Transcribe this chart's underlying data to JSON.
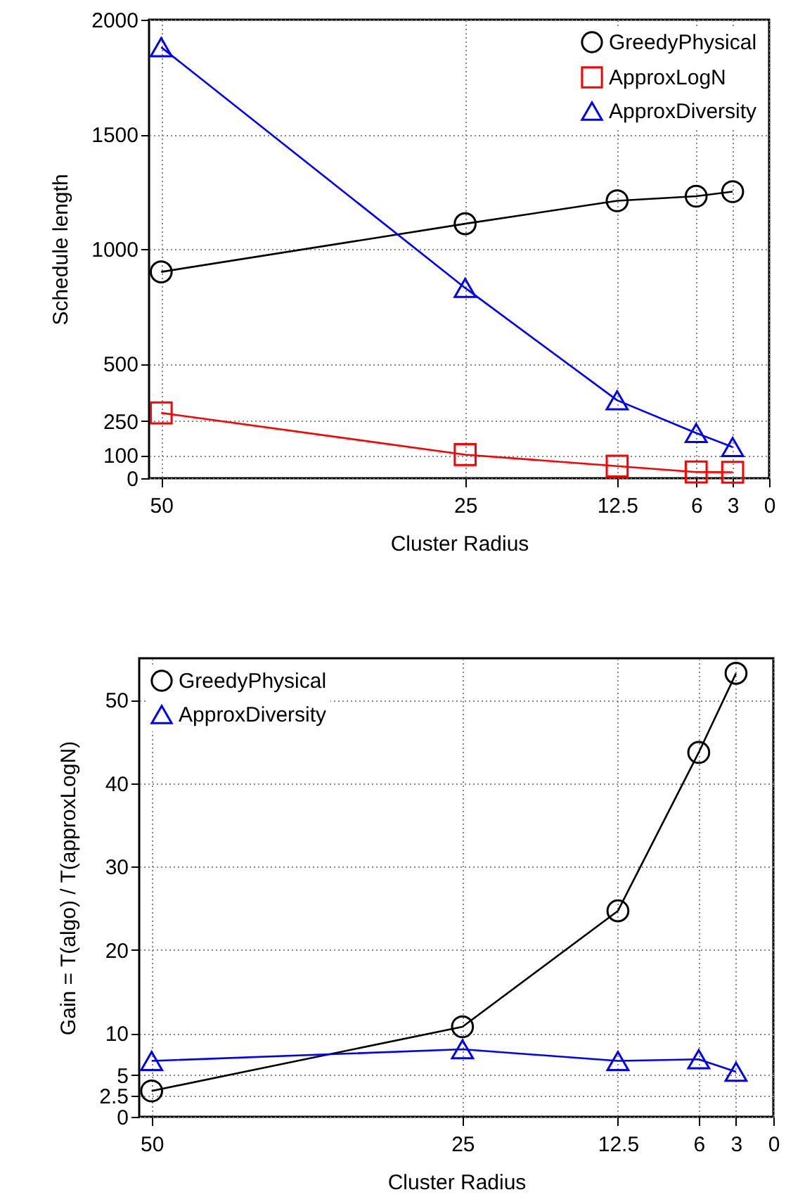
{
  "chart_data": [
    {
      "type": "line",
      "xlabel": "Cluster Radius",
      "ylabel": "Schedule length",
      "x": [
        50,
        25,
        12.5,
        6,
        3
      ],
      "xlim": [
        51,
        0
      ],
      "xticks": [
        50,
        25,
        12.5,
        6,
        3,
        0
      ],
      "ylim": [
        0,
        2000
      ],
      "yticks": [
        0,
        100,
        250,
        500,
        1000,
        1500,
        2000
      ],
      "grid": true,
      "legend": "top right",
      "line_style": "solid",
      "series": [
        {
          "name": "GreedyPhysical",
          "color": "#000000",
          "marker": "circle",
          "values": [
            900,
            1110,
            1210,
            1230,
            1250
          ]
        },
        {
          "name": "ApproxLogN",
          "color": "#ff0000",
          "marker": "square",
          "values": [
            285,
            103,
            53,
            27,
            26
          ]
        },
        {
          "name": "ApproxDiversity",
          "color": "#0000ff",
          "marker": "triangle",
          "values": [
            1880,
            830,
            340,
            197,
            136
          ]
        }
      ]
    },
    {
      "type": "line",
      "xlabel": "Cluster Radius",
      "ylabel": "Gain = T(algo) / T(approxLogN)",
      "x": [
        50,
        25,
        12.5,
        6,
        3
      ],
      "xlim": [
        51,
        0
      ],
      "xticks": [
        50,
        25,
        12.5,
        6,
        3,
        0
      ],
      "ylim": [
        0,
        55
      ],
      "yticks": [
        0,
        2.5,
        5,
        10,
        20,
        30,
        40,
        50
      ],
      "grid": true,
      "legend": "top left",
      "line_style": "solid",
      "series": [
        {
          "name": "GreedyPhysical",
          "color": "#000000",
          "marker": "circle",
          "values": [
            3.1,
            10.8,
            24.7,
            43.7,
            53.2
          ]
        },
        {
          "name": "ApproxDiversity",
          "color": "#0000ff",
          "marker": "triangle",
          "values": [
            6.7,
            8.1,
            6.7,
            6.9,
            5.4
          ]
        }
      ]
    }
  ]
}
